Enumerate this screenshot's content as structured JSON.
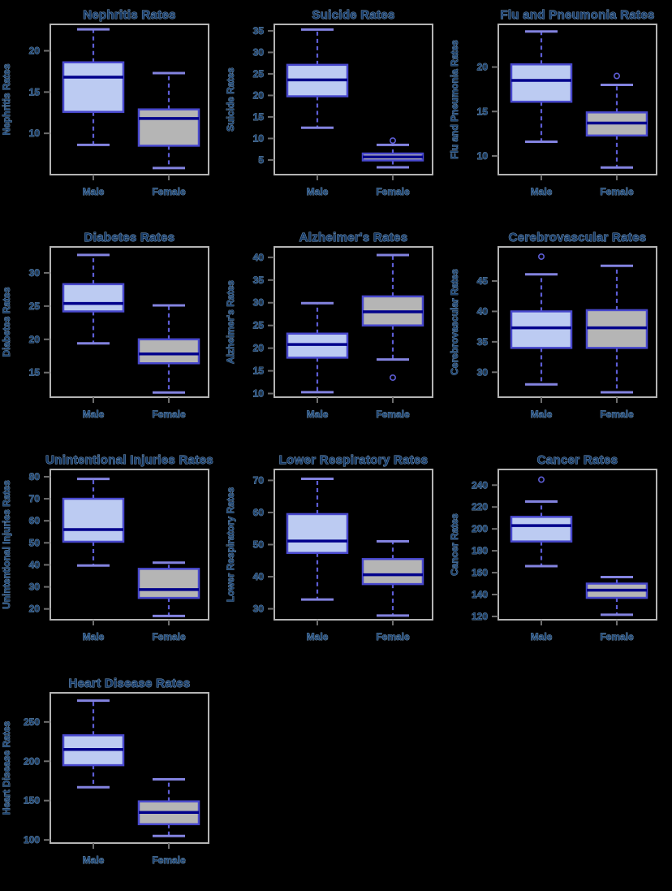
{
  "figure_title": "",
  "background_color": "#000000",
  "palette": {
    "male_fill": "#bccbf2",
    "female_fill": "#b5b5b5",
    "box_border": "#4848cd",
    "median": "#00008b",
    "whisker": "#5d5dd5",
    "cap": "#8383e0",
    "spine": "#b4b4b4",
    "tick": "#6e6e6e",
    "text": "#1d4471",
    "text_halo": "#86add4"
  },
  "chart_data": [
    {
      "type": "box",
      "title": "Nephritis Rates",
      "ylabel": "Nephritis Rates",
      "categories": [
        "Male",
        "Female"
      ],
      "yticks": [
        10,
        15,
        20
      ],
      "ylim": [
        5.0,
        23.2
      ],
      "grid": false,
      "series": [
        {
          "name": "Male",
          "whisker_low": 8.6,
          "q1": 12.6,
          "median": 16.8,
          "q3": 18.6,
          "whisker_high": 22.6,
          "outliers": []
        },
        {
          "name": "Female",
          "whisker_low": 5.8,
          "q1": 8.5,
          "median": 11.8,
          "q3": 12.9,
          "whisker_high": 17.3,
          "outliers": []
        }
      ]
    },
    {
      "type": "box",
      "title": "Suicide Rates",
      "ylabel": "Suicide Rates",
      "categories": [
        "Male",
        "Female"
      ],
      "yticks": [
        5,
        10,
        15,
        20,
        25,
        30,
        35
      ],
      "ylim": [
        1.6,
        36.5
      ],
      "grid": false,
      "series": [
        {
          "name": "Male",
          "whisker_low": 12.5,
          "q1": 19.8,
          "median": 23.6,
          "q3": 27.1,
          "whisker_high": 35.3,
          "outliers": []
        },
        {
          "name": "Female",
          "whisker_low": 3.3,
          "q1": 4.9,
          "median": 5.7,
          "q3": 6.5,
          "whisker_high": 8.5,
          "outliers": [
            9.5
          ]
        }
      ]
    },
    {
      "type": "box",
      "title": "Flu and Pneumonia Rates",
      "ylabel": "Flu and Pneumonia Rates",
      "categories": [
        "Male",
        "Female"
      ],
      "yticks": [
        10,
        15,
        20
      ],
      "ylim": [
        7.9,
        24.8
      ],
      "grid": false,
      "series": [
        {
          "name": "Male",
          "whisker_low": 11.6,
          "q1": 16.1,
          "median": 18.5,
          "q3": 20.3,
          "whisker_high": 24.0,
          "outliers": []
        },
        {
          "name": "Female",
          "whisker_low": 8.7,
          "q1": 12.3,
          "median": 13.7,
          "q3": 14.9,
          "whisker_high": 18.0,
          "outliers": [
            19.0
          ]
        }
      ]
    },
    {
      "type": "box",
      "title": "Diabetes Rates",
      "ylabel": "Diabetes Rates",
      "categories": [
        "Male",
        "Female"
      ],
      "yticks": [
        15,
        20,
        25,
        30
      ],
      "ylim": [
        11.3,
        33.9
      ],
      "grid": false,
      "series": [
        {
          "name": "Male",
          "whisker_low": 19.4,
          "q1": 24.2,
          "median": 25.4,
          "q3": 28.3,
          "whisker_high": 32.7,
          "outliers": []
        },
        {
          "name": "Female",
          "whisker_low": 12.0,
          "q1": 16.4,
          "median": 17.8,
          "q3": 20.0,
          "whisker_high": 25.1,
          "outliers": []
        }
      ]
    },
    {
      "type": "box",
      "title": "Alzheimer's Rates",
      "ylabel": "Alzheimer's Rates",
      "categories": [
        "Male",
        "Female"
      ],
      "yticks": [
        10,
        15,
        20,
        25,
        30,
        35,
        40
      ],
      "ylim": [
        9.2,
        42.3
      ],
      "grid": false,
      "series": [
        {
          "name": "Male",
          "whisker_low": 10.3,
          "q1": 17.9,
          "median": 20.8,
          "q3": 23.2,
          "whisker_high": 29.9,
          "outliers": []
        },
        {
          "name": "Female",
          "whisker_low": 17.5,
          "q1": 25.0,
          "median": 28.0,
          "q3": 31.4,
          "whisker_high": 40.5,
          "outliers": [
            13.5
          ]
        }
      ]
    },
    {
      "type": "box",
      "title": "Cerebrovascular Rates",
      "ylabel": "Cerebrovascular Rates",
      "categories": [
        "Male",
        "Female"
      ],
      "yticks": [
        30,
        35,
        40,
        45
      ],
      "ylim": [
        25.9,
        50.6
      ],
      "grid": false,
      "series": [
        {
          "name": "Male",
          "whisker_low": 28.0,
          "q1": 34.0,
          "median": 37.3,
          "q3": 40.0,
          "whisker_high": 46.1,
          "outliers": [
            49.0
          ]
        },
        {
          "name": "Female",
          "whisker_low": 26.7,
          "q1": 34.0,
          "median": 37.3,
          "q3": 40.2,
          "whisker_high": 47.5,
          "outliers": []
        }
      ]
    },
    {
      "type": "box",
      "title": "Unintentional Injuries Rates",
      "ylabel": "Unintentional Injuries Rates",
      "categories": [
        "Male",
        "Female"
      ],
      "yticks": [
        20,
        30,
        40,
        50,
        60,
        70,
        80
      ],
      "ylim": [
        15.1,
        83.3
      ],
      "grid": false,
      "series": [
        {
          "name": "Male",
          "whisker_low": 39.7,
          "q1": 50.5,
          "median": 56.0,
          "q3": 70.0,
          "whisker_high": 79.0,
          "outliers": []
        },
        {
          "name": "Female",
          "whisker_low": 16.8,
          "q1": 25.0,
          "median": 28.8,
          "q3": 38.2,
          "whisker_high": 41.0,
          "outliers": []
        }
      ]
    },
    {
      "type": "box",
      "title": "Lower Respiratory Rates",
      "ylabel": "Lower Respiratory Rates",
      "categories": [
        "Male",
        "Female"
      ],
      "yticks": [
        30,
        40,
        50,
        60,
        70
      ],
      "ylim": [
        26.6,
        73.4
      ],
      "grid": false,
      "series": [
        {
          "name": "Male",
          "whisker_low": 32.9,
          "q1": 47.4,
          "median": 51.1,
          "q3": 59.5,
          "whisker_high": 70.5,
          "outliers": []
        },
        {
          "name": "Female",
          "whisker_low": 27.9,
          "q1": 37.7,
          "median": 40.6,
          "q3": 45.5,
          "whisker_high": 51.0,
          "outliers": []
        }
      ]
    },
    {
      "type": "box",
      "title": "Cancer Rates",
      "ylabel": "Cancer Rates",
      "categories": [
        "Male",
        "Female"
      ],
      "yticks": [
        120,
        140,
        160,
        180,
        200,
        220,
        240
      ],
      "ylim": [
        117,
        254.3
      ],
      "grid": false,
      "series": [
        {
          "name": "Male",
          "whisker_low": 166,
          "q1": 188.5,
          "median": 203,
          "q3": 211,
          "whisker_high": 225,
          "outliers": [
            245
          ]
        },
        {
          "name": "Female",
          "whisker_low": 121.5,
          "q1": 137,
          "median": 144,
          "q3": 150,
          "whisker_high": 156,
          "outliers": []
        }
      ]
    },
    {
      "type": "box",
      "title": "Heart Disease Rates",
      "ylabel": "Heart Disease Rates",
      "categories": [
        "Male",
        "Female"
      ],
      "yticks": [
        100,
        150,
        200,
        250
      ],
      "ylim": [
        96,
        287
      ],
      "grid": false,
      "series": [
        {
          "name": "Male",
          "whisker_low": 167,
          "q1": 195,
          "median": 215,
          "q3": 233,
          "whisker_high": 277,
          "outliers": []
        },
        {
          "name": "Female",
          "whisker_low": 105,
          "q1": 120,
          "median": 135,
          "q3": 149,
          "whisker_high": 177,
          "outliers": []
        }
      ]
    }
  ]
}
